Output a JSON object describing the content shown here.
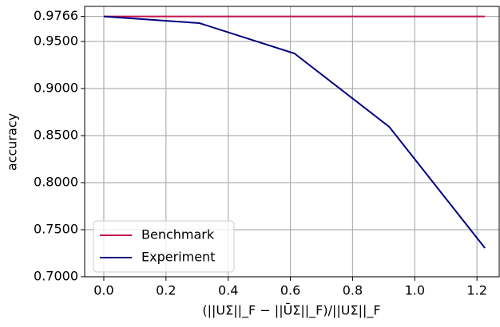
{
  "chart_data": {
    "type": "line",
    "x_label": "(||UΣ||_F − ||ŪΣ||_F)/||UΣ||_F",
    "y_label": "accuracy",
    "xlim": [
      -0.0615,
      1.2715
    ],
    "ylim": [
      0.7,
      0.9873
    ],
    "xticks": [
      {
        "value": 0,
        "label": "0.0"
      },
      0.2,
      0.4,
      0.6,
      0.8,
      {
        "value": 1,
        "label": "1.0"
      },
      1.2
    ],
    "yticks": [
      {
        "value": 0.7,
        "label": "0.7000"
      },
      {
        "value": 0.75,
        "label": "0.7500"
      },
      {
        "value": 0.8,
        "label": "0.8000"
      },
      {
        "value": 0.85,
        "label": "0.8500"
      },
      {
        "value": 0.9,
        "label": "0.9000"
      },
      {
        "value": 0.95,
        "label": "0.9500"
      },
      0.9766
    ],
    "grid": true,
    "legend": "lower left",
    "series": [
      {
        "name": "Benchmark",
        "color": "#c0154a",
        "x": [
          0,
          1.2256
        ],
        "values": [
          0.9766,
          0.9766
        ]
      },
      {
        "name": "Experiment",
        "color": "#00007f",
        "x": [
          0,
          0.3077,
          0.613,
          0.918,
          1.2256
        ],
        "values": [
          0.9766,
          0.9695,
          0.9373,
          0.8593,
          0.7305
        ]
      }
    ]
  }
}
